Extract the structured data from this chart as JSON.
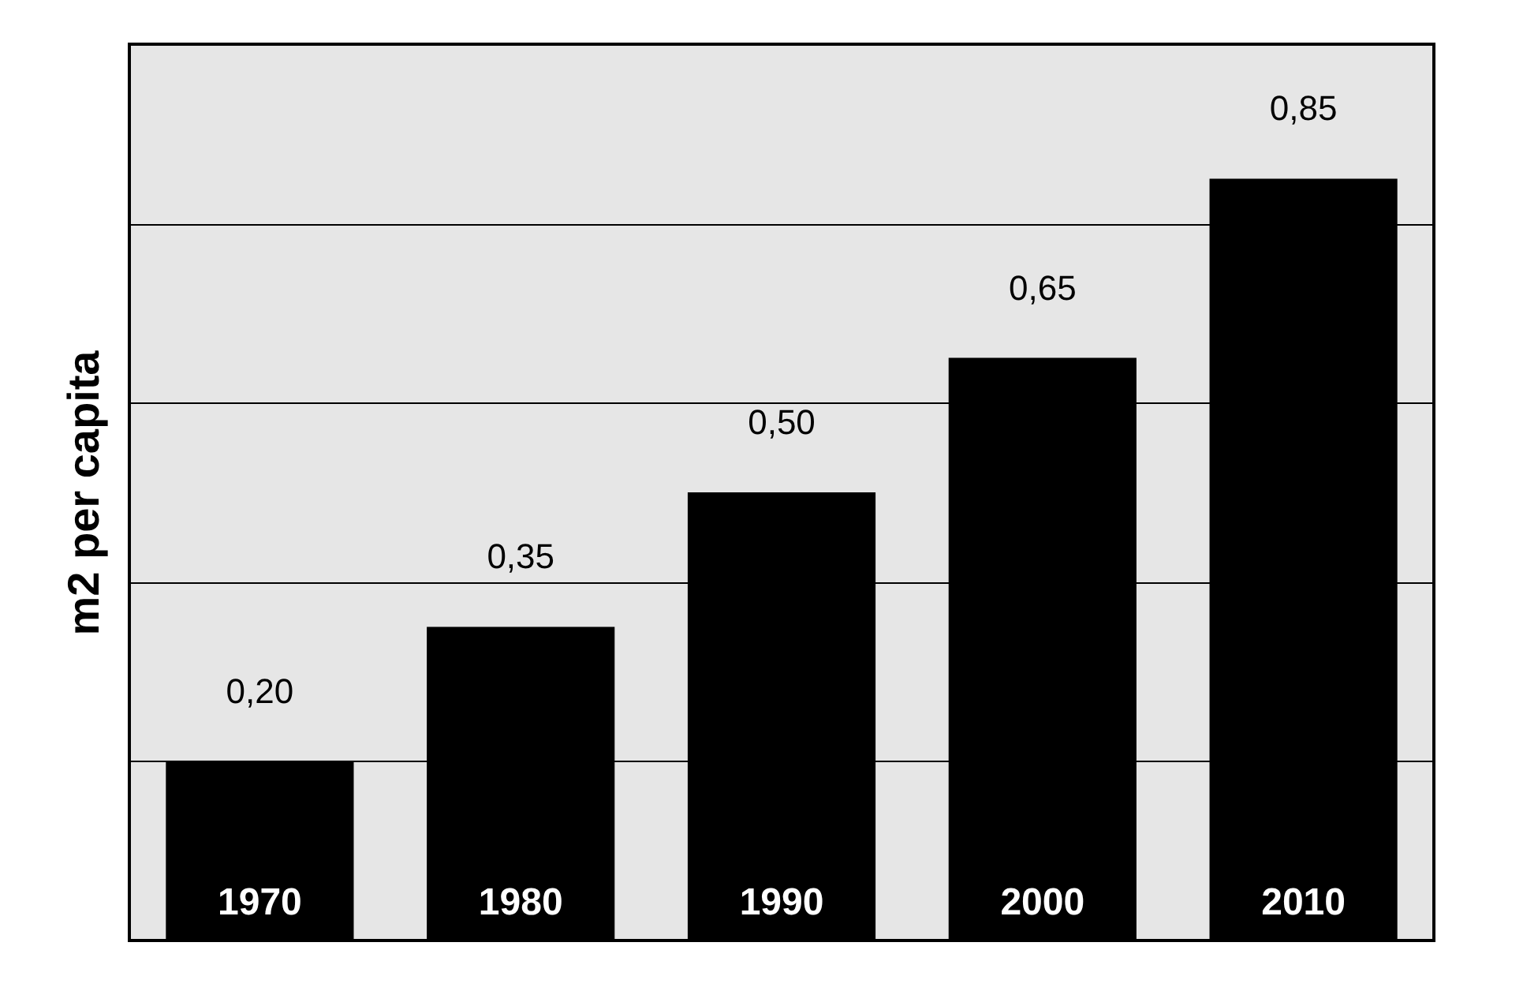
{
  "chart_data": {
    "type": "bar",
    "ylabel": "m2 per capita",
    "categories": [
      "1970",
      "1980",
      "1990",
      "2000",
      "2010"
    ],
    "values": [
      0.2,
      0.35,
      0.5,
      0.65,
      0.85
    ],
    "color": "#000000",
    "data_labels": true,
    "value_labels": [
      "0,20",
      "0,35",
      "0,50",
      "0,65",
      "0,85"
    ],
    "ylim": [
      0,
      1
    ],
    "yticks": [
      {
        "value": 0.2,
        "label": null
      },
      {
        "value": 0.4,
        "label": null
      },
      {
        "value": 0.6,
        "label": null
      },
      {
        "value": 0.8,
        "label": null
      }
    ],
    "grid": "y",
    "tick_labels": "x"
  }
}
